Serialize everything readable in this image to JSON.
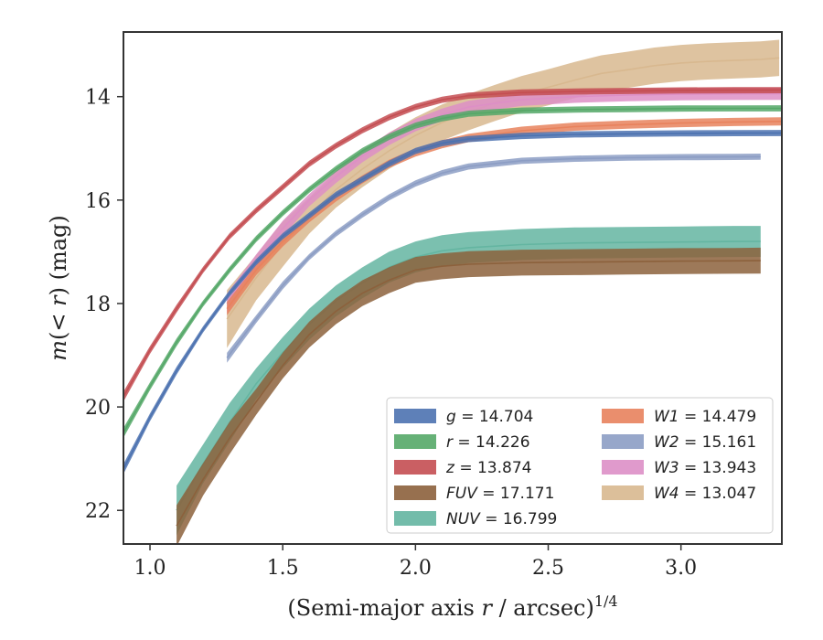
{
  "chart_data": {
    "type": "line",
    "title": "",
    "xlabel": "(Semi-major axis r / arcsec)1/4",
    "xlabel_parts": {
      "main": "(Semi-major axis ",
      "var": "r",
      "rest": " / arcsec)",
      "sup": "1/4"
    },
    "ylabel": "m(< r) (mag)",
    "ylabel_parts": {
      "func": "m",
      "open": "(",
      "lt": "< ",
      "var": "r",
      "close": ")",
      "unit": " (mag)"
    },
    "xlim": [
      0.9,
      3.38
    ],
    "ylim": [
      22.65,
      12.75
    ],
    "y_inverted": true,
    "xticks": [
      "1.0",
      "1.5",
      "2.0",
      "2.5",
      "3.0"
    ],
    "xtick_values": [
      1.0,
      1.5,
      2.0,
      2.5,
      3.0
    ],
    "yticks": [
      "14",
      "16",
      "18",
      "20",
      "22"
    ],
    "ytick_values": [
      14,
      16,
      18,
      20,
      22
    ],
    "grid": false,
    "legend_position": "lower-right",
    "legend_columns": 2,
    "series": [
      {
        "label": "g",
        "value": "14.704",
        "color": "#4c72b0",
        "band": 0.06,
        "x": [
          0.9,
          1.0,
          1.1,
          1.2,
          1.3,
          1.4,
          1.5,
          1.6,
          1.7,
          1.8,
          1.9,
          2.0,
          2.1,
          2.2,
          2.4,
          2.6,
          2.8,
          3.0,
          3.2,
          3.38
        ],
        "y": [
          21.2,
          20.2,
          19.3,
          18.5,
          17.8,
          17.2,
          16.7,
          16.3,
          15.9,
          15.6,
          15.3,
          15.05,
          14.9,
          14.82,
          14.76,
          14.73,
          14.72,
          14.71,
          14.705,
          14.704
        ]
      },
      {
        "label": "r",
        "value": "14.226",
        "color": "#55a868",
        "band": 0.06,
        "x": [
          0.9,
          1.0,
          1.1,
          1.2,
          1.3,
          1.4,
          1.5,
          1.6,
          1.7,
          1.8,
          1.9,
          2.0,
          2.1,
          2.2,
          2.4,
          2.6,
          2.8,
          3.0,
          3.2,
          3.38
        ],
        "y": [
          20.5,
          19.6,
          18.75,
          18.0,
          17.35,
          16.75,
          16.25,
          15.8,
          15.4,
          15.05,
          14.78,
          14.56,
          14.42,
          14.33,
          14.27,
          14.25,
          14.24,
          14.23,
          14.227,
          14.226
        ]
      },
      {
        "label": "z",
        "value": "13.874",
        "color": "#c44e52",
        "band": 0.06,
        "x": [
          0.9,
          1.0,
          1.1,
          1.2,
          1.3,
          1.4,
          1.5,
          1.6,
          1.7,
          1.8,
          1.9,
          2.0,
          2.1,
          2.2,
          2.4,
          2.6,
          2.8,
          3.0,
          3.2,
          3.38
        ],
        "y": [
          19.8,
          18.9,
          18.1,
          17.35,
          16.7,
          16.2,
          15.75,
          15.3,
          14.95,
          14.65,
          14.4,
          14.2,
          14.06,
          13.98,
          13.92,
          13.9,
          13.89,
          13.88,
          13.876,
          13.874
        ]
      },
      {
        "label": "FUV",
        "value": "17.171",
        "color": "#8c613c",
        "band": 0.25,
        "x": [
          1.1,
          1.2,
          1.3,
          1.4,
          1.5,
          1.6,
          1.7,
          1.8,
          1.9,
          2.0,
          2.1,
          2.2,
          2.4,
          2.6,
          2.8,
          3.0,
          3.2,
          3.3
        ],
        "y": [
          22.3,
          21.4,
          20.6,
          19.9,
          19.2,
          18.6,
          18.15,
          17.8,
          17.55,
          17.35,
          17.28,
          17.24,
          17.21,
          17.2,
          17.19,
          17.18,
          17.175,
          17.171
        ]
      },
      {
        "label": "NUV",
        "value": "16.799",
        "color": "#64b5a1",
        "band": 0.3,
        "x": [
          1.1,
          1.2,
          1.3,
          1.4,
          1.5,
          1.6,
          1.7,
          1.8,
          1.9,
          2.0,
          2.1,
          2.2,
          2.4,
          2.6,
          2.8,
          3.0,
          3.2,
          3.3
        ],
        "y": [
          22.0,
          21.1,
          20.3,
          19.55,
          18.95,
          18.4,
          17.95,
          17.6,
          17.3,
          17.1,
          16.98,
          16.92,
          16.86,
          16.83,
          16.82,
          16.81,
          16.8,
          16.799
        ]
      },
      {
        "label": "W1",
        "value": "14.479",
        "color": "#e8825d",
        "band": 0.08,
        "x": [
          1.29,
          1.4,
          1.5,
          1.6,
          1.7,
          1.8,
          1.9,
          2.0,
          2.1,
          2.2,
          2.4,
          2.6,
          2.8,
          3.0,
          3.2,
          3.38
        ],
        "y": [
          18.1,
          17.35,
          16.8,
          16.35,
          15.95,
          15.6,
          15.3,
          15.08,
          14.92,
          14.8,
          14.66,
          14.58,
          14.54,
          14.51,
          14.49,
          14.479
        ]
      },
      {
        "label": "W2",
        "value": "15.161",
        "color": "#8c9dc4",
        "band": 0.06,
        "x": [
          1.29,
          1.4,
          1.5,
          1.6,
          1.7,
          1.8,
          1.9,
          2.0,
          2.1,
          2.2,
          2.4,
          2.6,
          2.8,
          3.0,
          3.2,
          3.3
        ],
        "y": [
          19.05,
          18.3,
          17.65,
          17.1,
          16.65,
          16.28,
          15.95,
          15.68,
          15.48,
          15.35,
          15.24,
          15.2,
          15.18,
          15.17,
          15.165,
          15.161
        ]
      },
      {
        "label": "W3",
        "value": "13.943",
        "color": "#dd8fc6",
        "band": 0.12,
        "x": [
          1.29,
          1.4,
          1.5,
          1.6,
          1.7,
          1.8,
          1.9,
          2.0,
          2.1,
          2.2,
          2.4,
          2.6,
          2.8,
          3.0,
          3.2,
          3.38
        ],
        "y": [
          18.0,
          17.2,
          16.55,
          16.0,
          15.55,
          15.15,
          14.82,
          14.55,
          14.35,
          14.2,
          14.06,
          14.0,
          13.97,
          13.95,
          13.945,
          13.943
        ]
      },
      {
        "label": "W4",
        "value": "13.047",
        "color": "#d8b88f",
        "band": 0.35,
        "x": [
          1.29,
          1.4,
          1.5,
          1.6,
          1.7,
          1.8,
          1.9,
          2.0,
          2.1,
          2.2,
          2.3,
          2.4,
          2.5,
          2.6,
          2.7,
          2.8,
          2.9,
          3.0,
          3.1,
          3.2,
          3.3,
          3.37
        ],
        "y": [
          18.3,
          17.5,
          16.85,
          16.3,
          15.8,
          15.4,
          15.05,
          14.75,
          14.5,
          14.3,
          14.12,
          13.95,
          13.82,
          13.68,
          13.55,
          13.48,
          13.4,
          13.35,
          13.32,
          13.3,
          13.28,
          13.25
        ]
      }
    ],
    "legend_order": [
      "g",
      "r",
      "z",
      "FUV",
      "NUV",
      "W1",
      "W2",
      "W3",
      "W4"
    ],
    "legend_bg": "#ffffff",
    "axis_color": "#333333"
  }
}
